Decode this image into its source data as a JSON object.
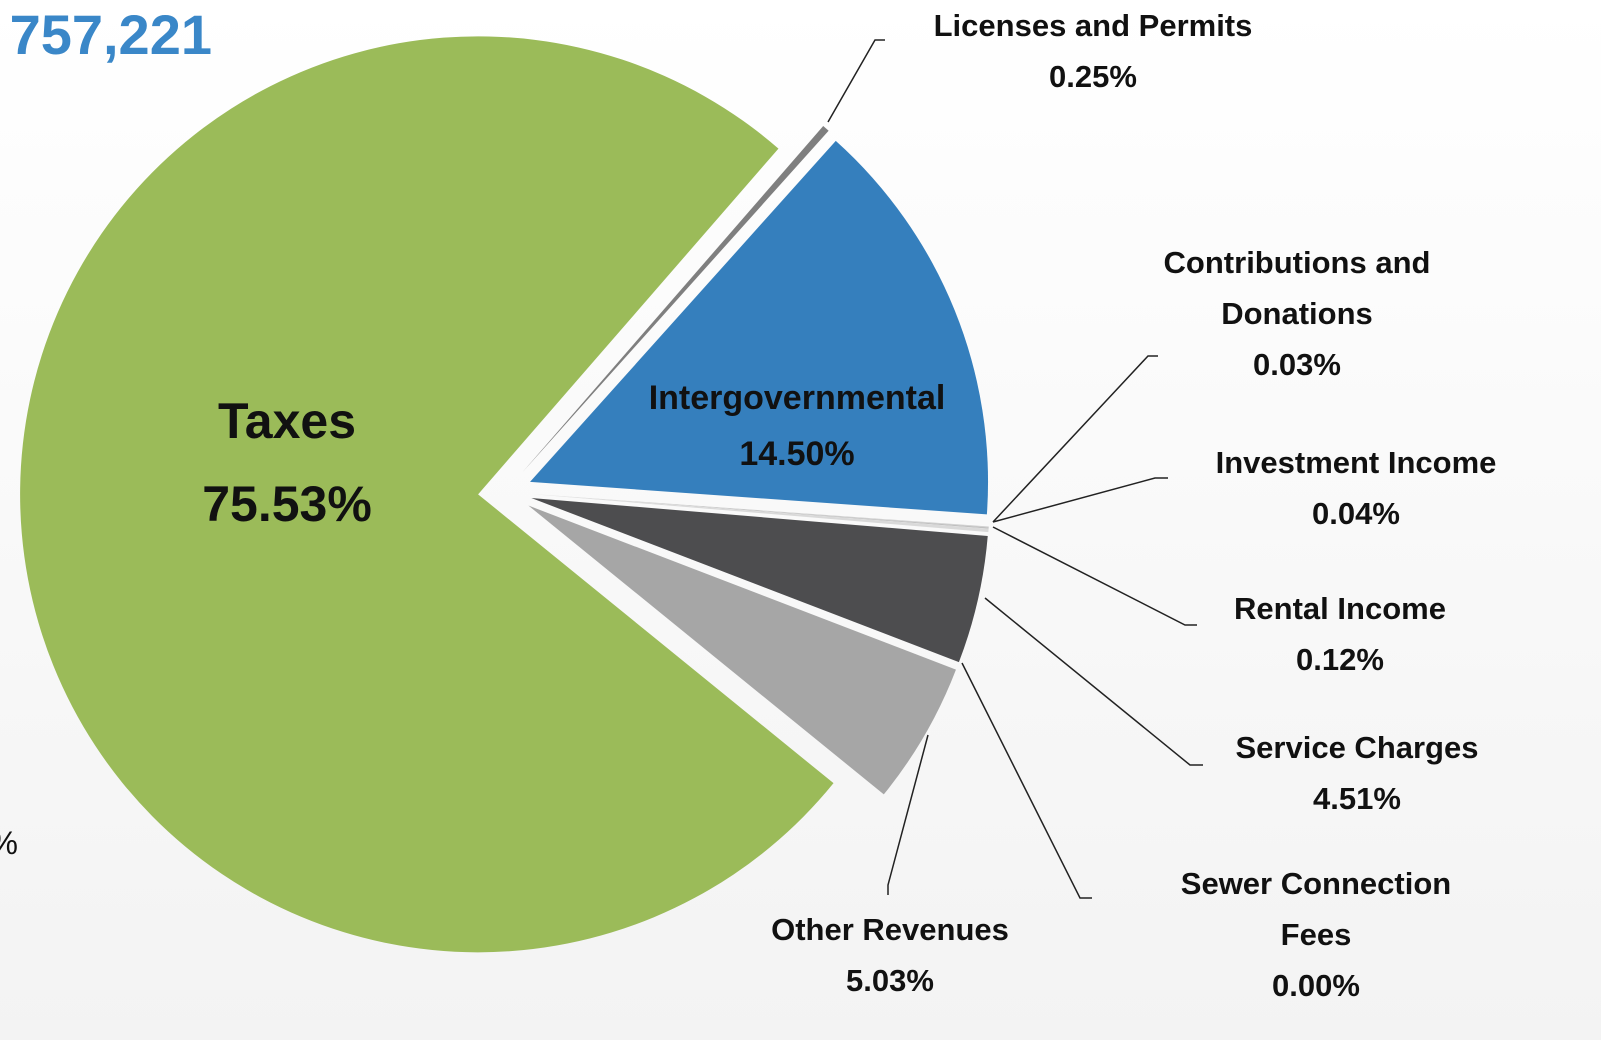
{
  "chart_data": {
    "type": "pie",
    "title": "757,221",
    "annotation": "%",
    "categories": [
      "Taxes",
      "Licenses and Permits",
      "Intergovernmental",
      "Contributions and Donations",
      "Investment Income",
      "Rental Income",
      "Service Charges",
      "Sewer Connection Fees",
      "Other Revenues"
    ],
    "values": [
      75.53,
      0.25,
      14.5,
      0.03,
      0.04,
      0.12,
      4.51,
      0.0,
      5.03
    ],
    "value_labels": [
      "75.53%",
      "0.25%",
      "14.50%",
      "0.03%",
      "0.04%",
      "0.12%",
      "4.51%",
      "0.00%",
      "5.03%"
    ],
    "colors": [
      "#9bbb59",
      "#7f7f7f",
      "#357fbd",
      "#cfcfcf",
      "#bfbfbf",
      "#d9d9d9",
      "#4d4d4f",
      "#8c8c8c",
      "#a6a6a6"
    ]
  }
}
